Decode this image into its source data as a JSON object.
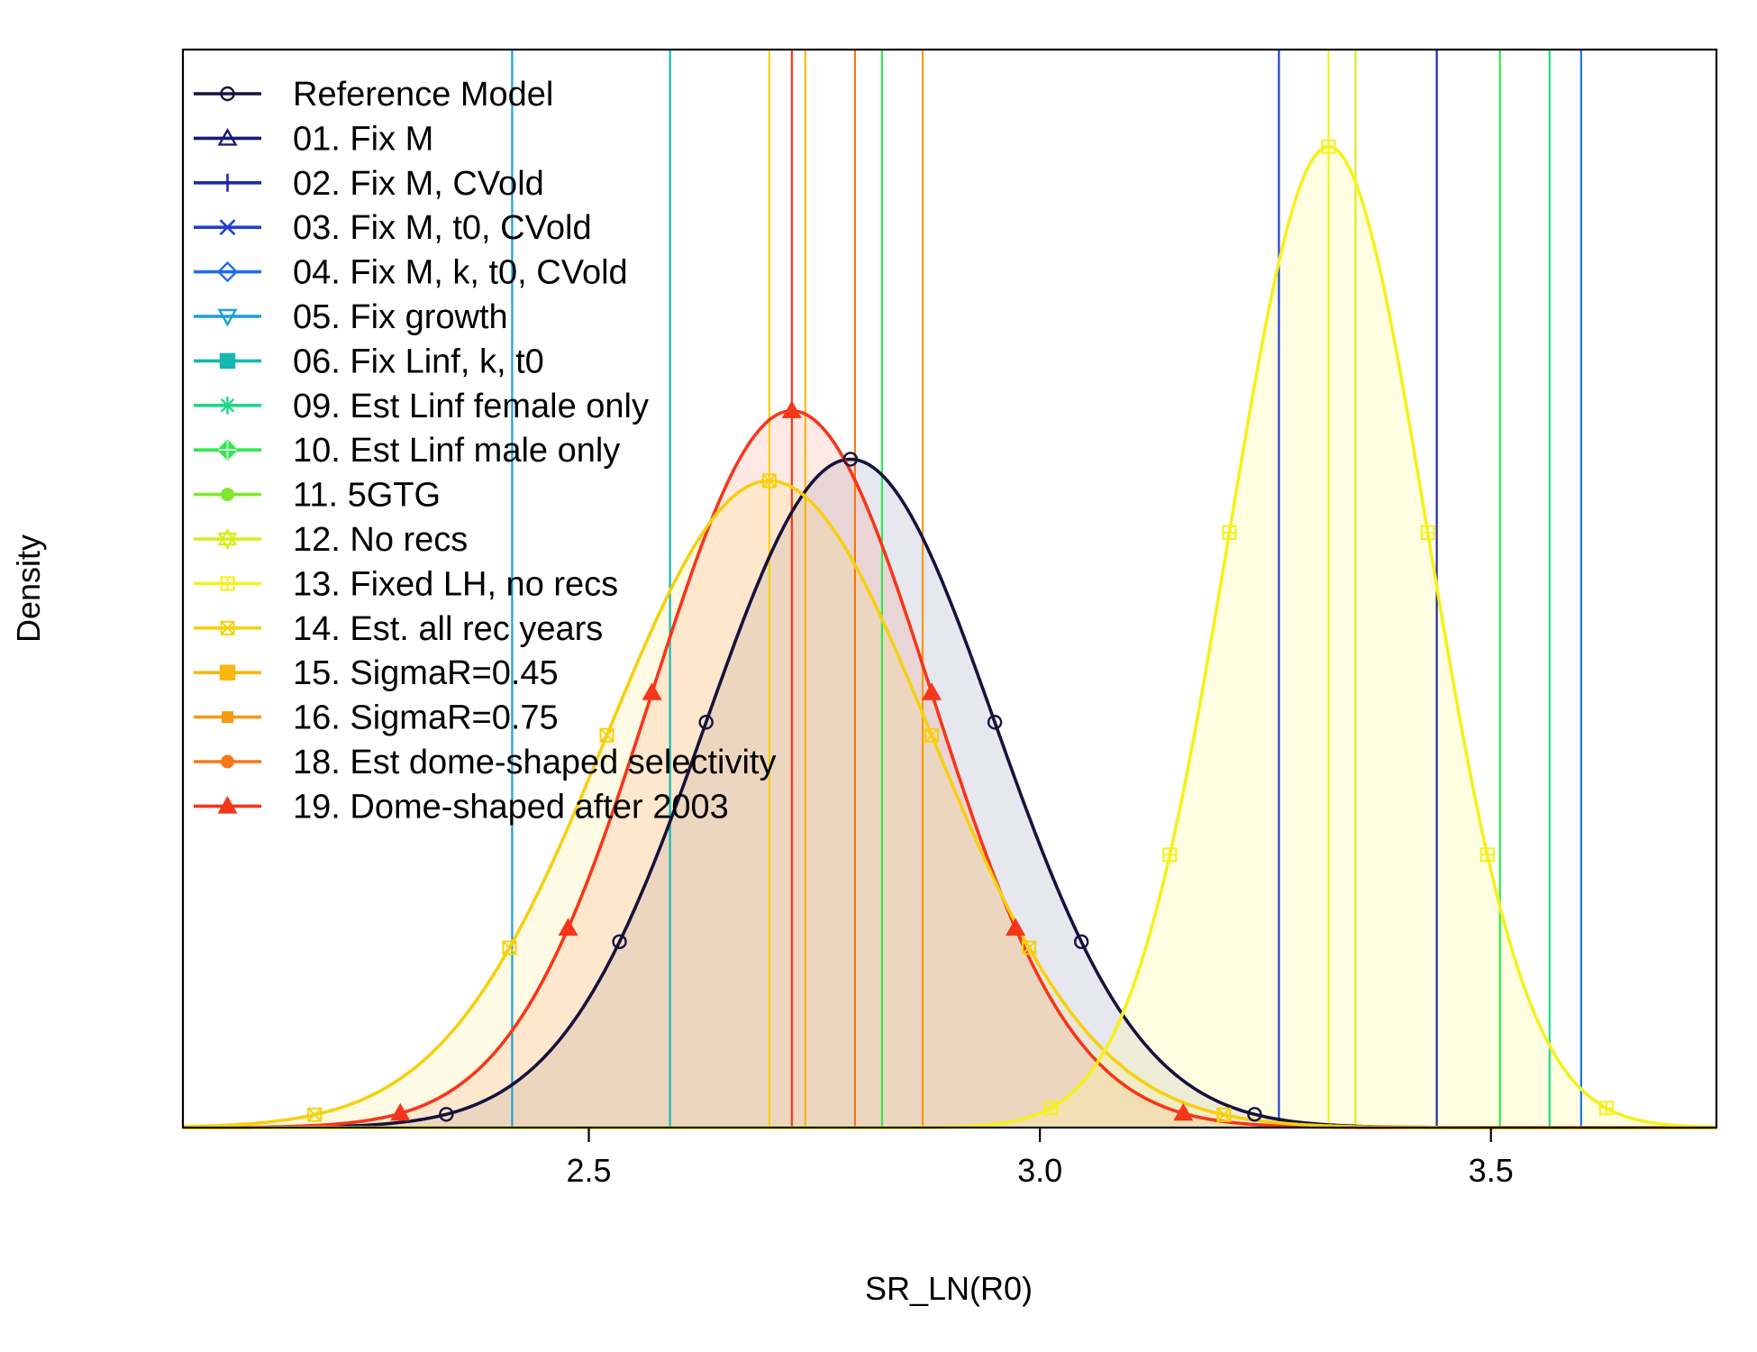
{
  "chart_data": {
    "type": "line",
    "title": "",
    "xlabel": "SR_LN(R0)",
    "ylabel": "Density",
    "xlim": [
      2.05,
      3.75
    ],
    "ylim": [
      0,
      1
    ],
    "xticks": [
      2.5,
      3.0,
      3.5
    ],
    "xtick_labels": [
      "2.5",
      "3.0",
      "3.5"
    ],
    "legend_position": "top-left",
    "grid": false,
    "legend": [
      {
        "label": "Reference Model",
        "color": "#16123d",
        "marker": "circle"
      },
      {
        "label": "01. Fix M",
        "color": "#1a1a7a",
        "marker": "triangle"
      },
      {
        "label": "02. Fix M, CVold",
        "color": "#1f2aa8",
        "marker": "plus"
      },
      {
        "label": "03. Fix M, t0, CVold",
        "color": "#1f3fd8",
        "marker": "x"
      },
      {
        "label": "04. Fix M, k, t0, CVold",
        "color": "#1e6fe6",
        "marker": "diamond"
      },
      {
        "label": "05. Fix growth",
        "color": "#1aa0d8",
        "marker": "triangle-down"
      },
      {
        "label": "06. Fix Linf, k, t0",
        "color": "#14b8b0",
        "marker": "square"
      },
      {
        "label": "09. Est Linf female only",
        "color": "#1ed88a",
        "marker": "asterisk"
      },
      {
        "label": "10. Est Linf male only",
        "color": "#2ee84e",
        "marker": "diamond-plus"
      },
      {
        "label": "11. 5GTG",
        "color": "#7ee82e",
        "marker": "circle-filled"
      },
      {
        "label": "12. No recs",
        "color": "#d8ee1a",
        "marker": "star"
      },
      {
        "label": "13. Fixed LH, no recs",
        "color": "#f6f01e",
        "marker": "square-plus"
      },
      {
        "label": "14. Est. all rec years",
        "color": "#f6d010",
        "marker": "hourglass"
      },
      {
        "label": "15. SigmaR=0.45",
        "color": "#f6b810",
        "marker": "square-filled"
      },
      {
        "label": "16. SigmaR=0.75",
        "color": "#f69a14",
        "marker": "square-small"
      },
      {
        "label": "18. Est dome-shaped selectivity",
        "color": "#f67818",
        "marker": "circle-filled"
      },
      {
        "label": "19. Dome-shaped after 2003",
        "color": "#f6361a",
        "marker": "triangle-filled"
      }
    ],
    "series": [
      {
        "name": "Reference Model",
        "color": "#16123d",
        "marker": "circle",
        "mean": 2.79,
        "sd": 0.16,
        "peak": 0.62,
        "fill": "rgba(70,70,130,0.13)"
      },
      {
        "name": "19. Dome-shaped after 2003",
        "color": "#f6361a",
        "marker": "triangle-filled",
        "mean": 2.725,
        "sd": 0.155,
        "peak": 0.665,
        "fill": "rgba(250,120,90,0.16)"
      },
      {
        "name": "14. Est. all rec years",
        "color": "#f6d010",
        "marker": "hourglass",
        "mean": 2.7,
        "sd": 0.18,
        "peak": 0.6,
        "fill": "rgba(255,225,80,0.16)"
      },
      {
        "name": "13. Fixed LH, no recs",
        "color": "#f6f01e",
        "marker": "square-plus",
        "mean": 3.32,
        "sd": 0.11,
        "peak": 0.91,
        "fill": "rgba(255,250,150,0.28)"
      }
    ],
    "vlines": [
      {
        "x": 2.415,
        "color": "#1aa0d8"
      },
      {
        "x": 2.59,
        "color": "#14b8b0"
      },
      {
        "x": 2.7,
        "color": "#f6d010"
      },
      {
        "x": 2.74,
        "color": "#f6b810"
      },
      {
        "x": 2.725,
        "color": "#f6361a"
      },
      {
        "x": 2.795,
        "color": "#f67818"
      },
      {
        "x": 2.825,
        "color": "#2ee84e"
      },
      {
        "x": 2.87,
        "color": "#f69a14"
      },
      {
        "x": 3.265,
        "color": "#1f3fd8"
      },
      {
        "x": 3.32,
        "color": "#f6f01e"
      },
      {
        "x": 3.35,
        "color": "#d8ee1a"
      },
      {
        "x": 3.44,
        "color": "#1f2aa8"
      },
      {
        "x": 3.51,
        "color": "#2ee84e"
      },
      {
        "x": 3.565,
        "color": "#1ed88a"
      },
      {
        "x": 3.6,
        "color": "#1e6fe6"
      }
    ]
  }
}
